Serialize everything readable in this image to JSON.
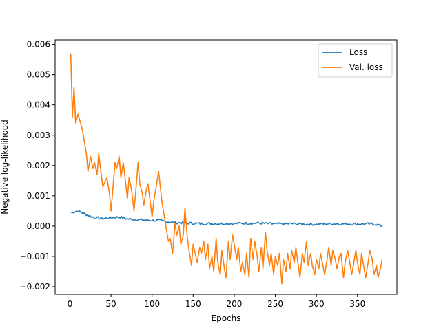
{
  "chart_data": {
    "type": "line",
    "title": "",
    "xlabel": "Epochs",
    "ylabel": "Negative log-likelihood",
    "xlim": [
      -18,
      398
    ],
    "ylim": [
      -0.00225,
      0.00615
    ],
    "xticks": [
      0,
      50,
      100,
      150,
      200,
      250,
      300,
      350
    ],
    "xtick_labels": [
      "0",
      "50",
      "100",
      "150",
      "200",
      "250",
      "300",
      "350"
    ],
    "yticks": [
      -0.002,
      -0.001,
      0.0,
      0.001,
      0.002,
      0.003,
      0.004,
      0.005,
      0.006
    ],
    "ytick_labels": [
      "−0.002",
      "−0.001",
      "0.000",
      "0.001",
      "0.002",
      "0.003",
      "0.004",
      "0.005",
      "0.006"
    ],
    "grid": false,
    "legend_position": "upper right",
    "series": [
      {
        "name": "Loss",
        "color": "#1f77b4",
        "x": [
          1,
          10,
          20,
          30,
          40,
          50,
          60,
          70,
          80,
          90,
          100,
          110,
          120,
          130,
          140,
          150,
          160,
          170,
          180,
          190,
          200,
          210,
          220,
          230,
          240,
          250,
          260,
          270,
          280,
          290,
          300,
          310,
          320,
          330,
          340,
          350,
          360,
          370,
          380
        ],
        "y": [
          0.00045,
          0.0005,
          0.00038,
          0.00028,
          0.00025,
          0.00028,
          0.0003,
          0.00024,
          0.00022,
          0.0002,
          0.00019,
          0.00018,
          0.00014,
          0.00011,
          0.0001,
          9e-05,
          8e-05,
          8e-05,
          8e-05,
          8e-05,
          8e-05,
          9e-05,
          9e-05,
          0.0001,
          8e-05,
          7e-05,
          7e-05,
          8e-05,
          7e-05,
          6e-05,
          6e-05,
          7e-05,
          8e-05,
          7e-05,
          7e-05,
          7e-05,
          7e-05,
          7e-05,
          0.0
        ],
        "noise": 4e-05
      },
      {
        "name": "Val. loss",
        "color": "#ff7f0e",
        "x": [
          1,
          3,
          5,
          7,
          10,
          15,
          20,
          22,
          25,
          28,
          30,
          33,
          35,
          40,
          45,
          48,
          50,
          55,
          57,
          60,
          62,
          65,
          70,
          72,
          75,
          78,
          80,
          83,
          85,
          88,
          90,
          93,
          95,
          100,
          102,
          105,
          108,
          110,
          112,
          115,
          118,
          120,
          122,
          125,
          128,
          130,
          133,
          135,
          138,
          140,
          143,
          145,
          148,
          150,
          155,
          158,
          160,
          163,
          165,
          168,
          170,
          173,
          175,
          178,
          180,
          183,
          185,
          188,
          190,
          193,
          195,
          198,
          200,
          203,
          205,
          208,
          210,
          213,
          215,
          218,
          220,
          223,
          225,
          228,
          230,
          233,
          235,
          238,
          240,
          243,
          245,
          248,
          250,
          253,
          255,
          258,
          260,
          263,
          265,
          268,
          270,
          273,
          275,
          278,
          280,
          283,
          285,
          288,
          290,
          293,
          295,
          298,
          300,
          303,
          305,
          308,
          310,
          313,
          315,
          318,
          320,
          323,
          325,
          328,
          330,
          333,
          335,
          338,
          340,
          343,
          345,
          348,
          350,
          353,
          355,
          358,
          360,
          363,
          365,
          368,
          370,
          373,
          375,
          378,
          380
        ],
        "y": [
          0.0057,
          0.0036,
          0.0046,
          0.0034,
          0.0037,
          0.0032,
          0.0024,
          0.0018,
          0.0023,
          0.0019,
          0.0021,
          0.0017,
          0.0024,
          0.0013,
          0.0016,
          0.0011,
          0.0005,
          0.0021,
          0.0019,
          0.0023,
          0.0016,
          0.0021,
          0.0009,
          0.0016,
          0.0012,
          0.0005,
          0.0011,
          0.0021,
          0.0014,
          0.0011,
          0.0007,
          0.0012,
          0.0014,
          0.0003,
          0.0008,
          0.0013,
          0.0018,
          0.0013,
          0.0008,
          0.0003,
          -0.0002,
          -0.0005,
          -0.0004,
          -0.0009,
          0.0001,
          -0.0003,
          0.0,
          -0.0006,
          -0.0003,
          0.0006,
          -0.0004,
          -0.0008,
          -0.0013,
          -0.0006,
          -0.0012,
          -0.0007,
          -0.0009,
          -0.0005,
          -0.0011,
          -0.0006,
          -0.0014,
          -0.001,
          -0.0015,
          -0.0004,
          -0.0012,
          -0.0016,
          -0.0008,
          -0.0014,
          -0.0017,
          -0.0005,
          -0.0011,
          -0.0003,
          -0.0006,
          -0.0011,
          -0.0007,
          -0.0015,
          -0.0012,
          -0.0016,
          -0.0009,
          -0.0017,
          -0.0004,
          -0.0011,
          -0.0005,
          -0.001,
          -0.0015,
          -0.0007,
          -0.0014,
          -0.0002,
          -0.0008,
          -0.0013,
          -0.0009,
          -0.0016,
          -0.001,
          -0.0013,
          -0.0009,
          -0.0019,
          -0.0011,
          -0.0015,
          -0.0009,
          -0.0014,
          -0.0008,
          -0.0012,
          -0.0007,
          -0.0013,
          -0.0017,
          -0.0009,
          -0.0012,
          -0.0005,
          -0.0013,
          -0.0009,
          -0.0013,
          -0.0016,
          -0.0011,
          -0.0014,
          -0.0009,
          -0.0013,
          -0.0016,
          -0.0011,
          -0.0007,
          -0.0013,
          -0.0008,
          -0.0011,
          -0.0014,
          -0.001,
          -0.0009,
          -0.0017,
          -0.0012,
          -0.0008,
          -0.0011,
          -0.0016,
          -0.0013,
          -0.0008,
          -0.0012,
          -0.0016,
          -0.0009,
          -0.0014,
          -0.0017,
          -0.0012,
          -0.0008,
          -0.0011,
          -0.0016,
          -0.0013,
          -0.0017,
          -0.0014,
          -0.0011
        ],
        "noise": 0.0
      }
    ]
  }
}
